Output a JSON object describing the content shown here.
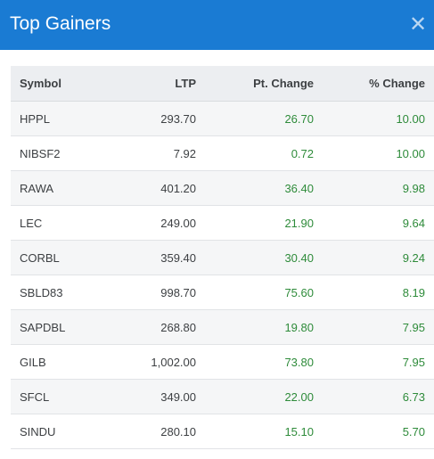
{
  "header": {
    "title": "Top Gainers",
    "close_icon": "close-icon"
  },
  "table": {
    "columns": [
      "Symbol",
      "LTP",
      "Pt. Change",
      "% Change"
    ],
    "rows": [
      {
        "symbol": "HPPL",
        "ltp": "293.70",
        "pt_change": "26.70",
        "pct_change": "10.00"
      },
      {
        "symbol": "NIBSF2",
        "ltp": "7.92",
        "pt_change": "0.72",
        "pct_change": "10.00"
      },
      {
        "symbol": "RAWA",
        "ltp": "401.20",
        "pt_change": "36.40",
        "pct_change": "9.98"
      },
      {
        "symbol": "LEC",
        "ltp": "249.00",
        "pt_change": "21.90",
        "pct_change": "9.64"
      },
      {
        "symbol": "CORBL",
        "ltp": "359.40",
        "pt_change": "30.40",
        "pct_change": "9.24"
      },
      {
        "symbol": "SBLD83",
        "ltp": "998.70",
        "pt_change": "75.60",
        "pct_change": "8.19"
      },
      {
        "symbol": "SAPDBL",
        "ltp": "268.80",
        "pt_change": "19.80",
        "pct_change": "7.95"
      },
      {
        "symbol": "GILB",
        "ltp": "1,002.00",
        "pt_change": "73.80",
        "pct_change": "7.95"
      },
      {
        "symbol": "SFCL",
        "ltp": "349.00",
        "pt_change": "22.00",
        "pct_change": "6.73"
      },
      {
        "symbol": "SINDU",
        "ltp": "280.10",
        "pt_change": "15.10",
        "pct_change": "5.70"
      }
    ]
  },
  "colors": {
    "header_bg": "#1a7bd3",
    "gain_green": "#2e8b3a"
  }
}
